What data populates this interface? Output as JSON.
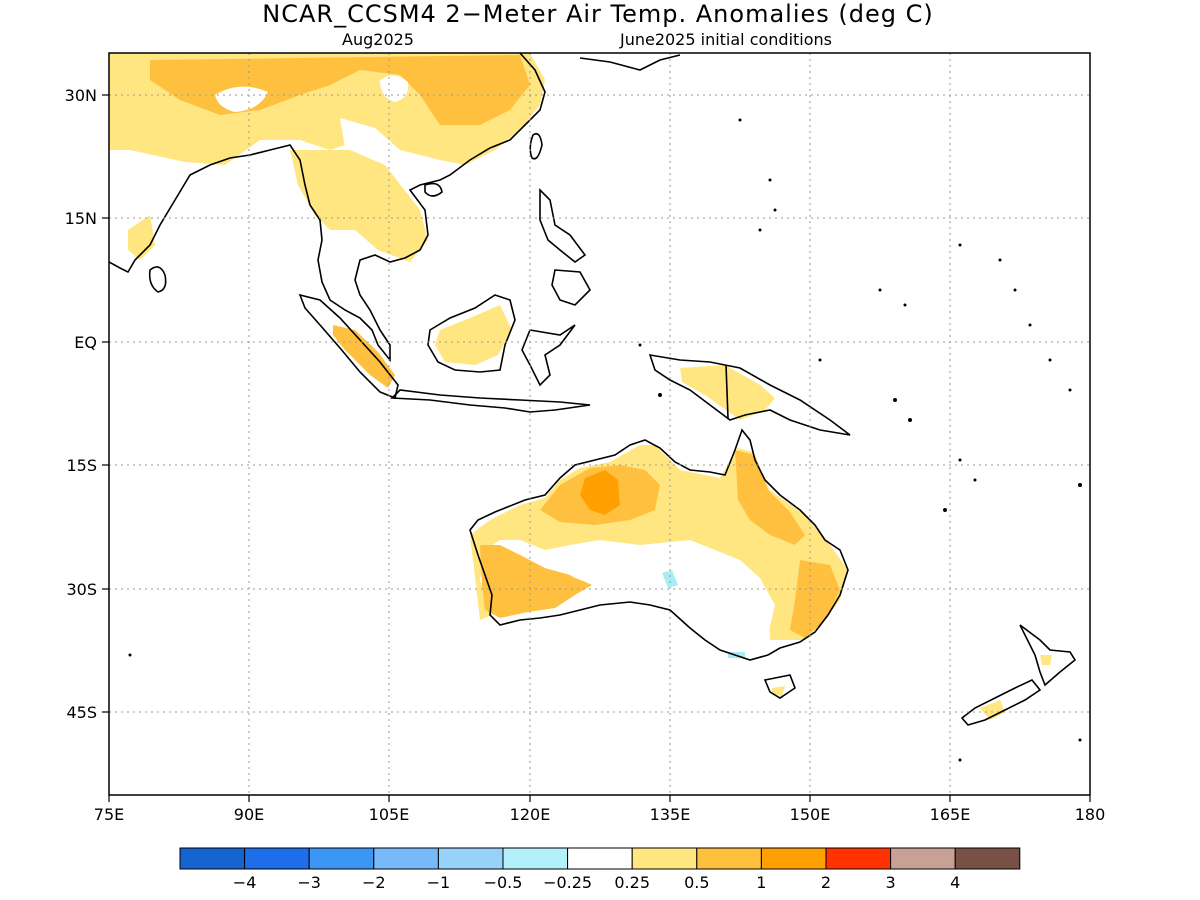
{
  "title": "NCAR_CCSM4 2−Meter Air Temp. Anomalies (deg C)",
  "subtitle_left": "Aug2025",
  "subtitle_right": "June2025 initial conditions",
  "lat_labels": [
    "30N",
    "15N",
    "EQ",
    "15S",
    "30S",
    "45S"
  ],
  "lon_labels": [
    "75E",
    "90E",
    "105E",
    "120E",
    "135E",
    "150E",
    "165E",
    "180"
  ],
  "colors": {
    "land_outline": "#000000",
    "grid": "#aaaaaa",
    "light_yellow": "#ffe680",
    "yellow_orange": "#ffc040",
    "orange": "#ffa000",
    "light_cyan": "#a8ecf4"
  },
  "colorbar": {
    "swatches": [
      "#1464d2",
      "#1e6eeb",
      "#3c96f5",
      "#78b9fa",
      "#96d2fa",
      "#b4f0fa",
      "#ffffff",
      "#ffe680",
      "#ffc03c",
      "#ffa000",
      "#ff3200",
      "#c8a096",
      "#785046"
    ],
    "labels": [
      "−4",
      "−3",
      "−2",
      "−1",
      "−0.5",
      "−0.25",
      "0.25",
      "0.5",
      "1",
      "2",
      "3",
      "4"
    ]
  }
}
